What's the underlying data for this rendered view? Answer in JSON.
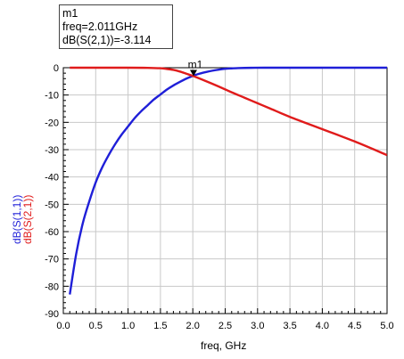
{
  "marker": {
    "name": "m1",
    "freq_text": "freq=2.011GHz",
    "value_text": "dB(S(2,1))=-3.114"
  },
  "colors": {
    "s11": "#1f1fd8",
    "s21": "#e01b1b",
    "grid": "#c8c8c8",
    "axis": "#000000"
  },
  "chart_data": {
    "type": "line",
    "xlabel": "freq, GHz",
    "ylabels": [
      "dB(S(1,1))",
      "dB(S(2,1))"
    ],
    "xlim": [
      0,
      5
    ],
    "ylim": [
      -90,
      0
    ],
    "xticks": [
      "0.0",
      "0.5",
      "1.0",
      "1.5",
      "2.0",
      "2.5",
      "3.0",
      "3.5",
      "4.0",
      "4.5",
      "5.0"
    ],
    "yticks": [
      "0",
      "-10",
      "-20",
      "-30",
      "-40",
      "-50",
      "-60",
      "-70",
      "-80",
      "-90"
    ],
    "grid": true,
    "series": [
      {
        "name": "dB(S(1,1))",
        "color": "#1f1fd8",
        "x": [
          0.1,
          0.2,
          0.3,
          0.4,
          0.5,
          0.6,
          0.7,
          0.8,
          0.9,
          1.0,
          1.1,
          1.2,
          1.3,
          1.4,
          1.5,
          1.6,
          1.7,
          1.8,
          1.9,
          2.0,
          2.1,
          2.2,
          2.3,
          2.4,
          2.5,
          2.6,
          2.7,
          2.8,
          2.9,
          3.0,
          3.1,
          5.0
        ],
        "y": [
          -83,
          -68,
          -57,
          -49,
          -42,
          -36.5,
          -32,
          -28,
          -24.5,
          -21.5,
          -18.5,
          -16,
          -13.8,
          -11.6,
          -9.8,
          -8.0,
          -6.5,
          -5.2,
          -4.0,
          -3.0,
          -2.2,
          -1.6,
          -1.1,
          -0.7,
          -0.4,
          -0.25,
          -0.15,
          -0.08,
          -0.04,
          -0.02,
          0,
          0
        ]
      },
      {
        "name": "dB(S(2,1))",
        "color": "#e01b1b",
        "x": [
          0.1,
          1.0,
          1.3,
          1.5,
          1.6,
          1.7,
          1.8,
          1.9,
          2.011,
          2.2,
          2.4,
          2.6,
          2.8,
          3.0,
          3.2,
          3.5,
          4.0,
          4.5,
          5.0
        ],
        "y": [
          0,
          0,
          -0.05,
          -0.2,
          -0.45,
          -0.8,
          -1.4,
          -2.2,
          -3.114,
          -4.9,
          -6.9,
          -9.0,
          -11.0,
          -13.0,
          -15.0,
          -18.0,
          -22.5,
          -27.0,
          -32.0
        ]
      }
    ],
    "markers": [
      {
        "label": "m1",
        "x": 2.011,
        "y": -3.114
      }
    ]
  }
}
